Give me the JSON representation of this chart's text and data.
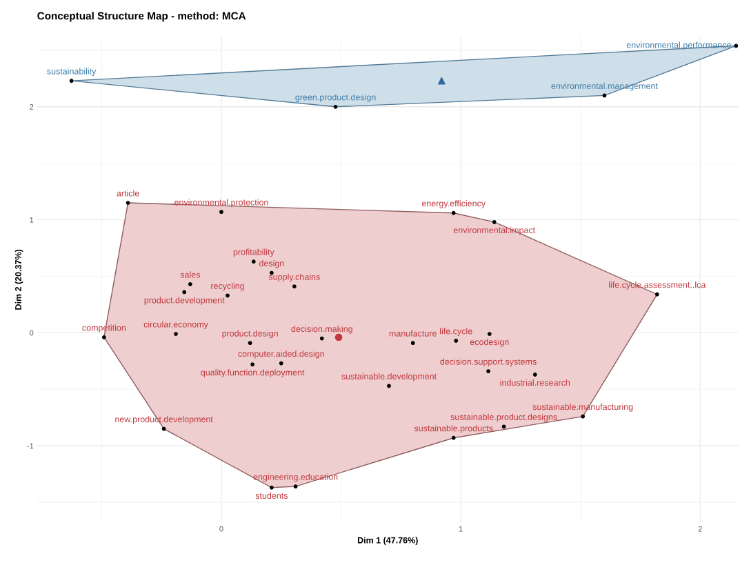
{
  "chart_data": {
    "type": "scatter",
    "title": "Conceptual Structure Map - method: MCA",
    "xlabel": "Dim 1 (47.76%)",
    "ylabel": "Dim 2 (20.37%)",
    "xlim": [
      -0.77,
      2.16
    ],
    "ylim": [
      -1.68,
      2.62
    ],
    "xticks": [
      0,
      1,
      2
    ],
    "yticks": [
      -1,
      0,
      1,
      2
    ],
    "grid": true,
    "series": [
      {
        "type": "area",
        "color": "#efcecf",
        "x": [
          -0.49,
          -0.24,
          0.21,
          0.31,
          0.97,
          1.51,
          1.82,
          1.14,
          0.97,
          -0.39
        ],
        "values": [
          -0.04,
          -0.85,
          -1.37,
          -1.36,
          -0.93,
          -0.74,
          0.34,
          0.98,
          1.06,
          1.15
        ]
      },
      {
        "type": "area",
        "color": "#cfdfea",
        "x": [
          -0.626,
          0.477,
          1.6,
          2.15
        ],
        "values": [
          2.23,
          2.0,
          2.1,
          2.54
        ]
      },
      {
        "color": "#c0393f",
        "marker": "circle",
        "colors": [
          "#000000",
          "#000000",
          "#000000",
          "#000000",
          "#000000",
          "#000000",
          "#000000",
          "#000000",
          "#000000",
          "#000000",
          "#000000",
          "#000000",
          "#000000",
          "#000000",
          "#000000",
          "#000000",
          "#000000",
          "#000000",
          "#000000",
          "#000000",
          "#000000",
          "#000000",
          "#000000",
          "#000000",
          "#000000",
          "#000000",
          "#000000",
          "#000000",
          "#000000"
        ],
        "x": [
          -0.39,
          0.0,
          0.97,
          1.14,
          1.82,
          0.135,
          0.21,
          0.305,
          -0.13,
          -0.155,
          0.026,
          -0.19,
          -0.49,
          0.12,
          0.25,
          0.13,
          0.42,
          0.8,
          0.98,
          1.12,
          1.115,
          1.31,
          0.7,
          1.51,
          1.18,
          0.97,
          -0.24,
          0.31,
          0.21
        ],
        "values": [
          1.15,
          1.07,
          1.06,
          0.98,
          0.34,
          0.63,
          0.53,
          0.41,
          0.43,
          0.36,
          0.33,
          -0.01,
          -0.04,
          -0.09,
          -0.27,
          -0.28,
          -0.05,
          -0.09,
          -0.07,
          -0.01,
          -0.34,
          -0.37,
          -0.47,
          -0.74,
          -0.83,
          -0.93,
          -0.85,
          -1.36,
          -1.37
        ],
        "value_labels": [
          "article",
          "environmental.protection",
          "energy.efficiency",
          "environmental.impact",
          "life.cycle.assessment..lca",
          "profitability",
          "design",
          "supply.chains",
          "sales",
          "product.development",
          "recycling",
          "circular.economy",
          "competition",
          "product.design",
          "computer.aided.design",
          "quality.function.deployment",
          "decision.making",
          "manufacture",
          "life.cycle",
          "ecodesign",
          "decision.support.systems",
          "industrial.research",
          "sustainable.development",
          "sustainable.manufacturing",
          "sustainable.product.designs",
          "sustainable.products",
          "new.product.development",
          "engineering.education",
          "students"
        ]
      },
      {
        "color": "#3f7ea8",
        "marker": "circle",
        "colors": [
          "#000000",
          "#000000",
          "#000000",
          "#000000"
        ],
        "x": [
          -0.626,
          0.477,
          1.6,
          2.15
        ],
        "values": [
          2.23,
          2.0,
          2.1,
          2.54
        ],
        "value_labels": [
          "sustainability",
          "green.product.design",
          "environmental.management",
          "environmental.performance"
        ]
      },
      {
        "color": "#c0393f",
        "marker": "circle",
        "x": [
          0.49
        ],
        "values": [
          -0.04
        ]
      },
      {
        "color": "#2f6a9a",
        "marker": "triangle",
        "x": [
          0.92
        ],
        "values": [
          2.23
        ]
      }
    ]
  }
}
